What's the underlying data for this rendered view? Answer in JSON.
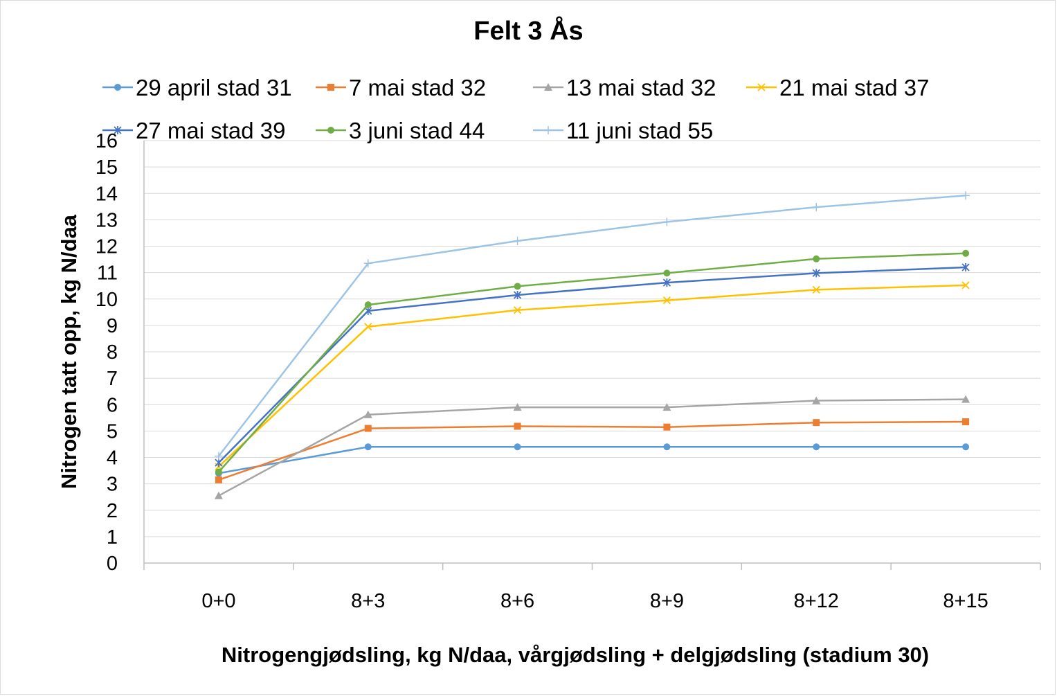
{
  "chart_data": {
    "type": "line",
    "title": "Felt 3 Ås",
    "xlabel": "Nitrogengjødsling, kg N/daa, vårgjødsling + delgjødsling (stadium 30)",
    "ylabel": "Nitrogen tatt opp, kg N/daa",
    "categories": [
      "0+0",
      "8+3",
      "8+6",
      "8+9",
      "8+12",
      "8+15"
    ],
    "ylim": [
      0,
      16
    ],
    "yticks": [
      0,
      1,
      2,
      3,
      4,
      5,
      6,
      7,
      8,
      9,
      10,
      11,
      12,
      13,
      14,
      15,
      16
    ],
    "grid": true,
    "legend_position": "top",
    "series": [
      {
        "name": "29 april stad 31",
        "color": "#5b9bd5",
        "marker": "circle",
        "values": [
          3.4,
          4.4,
          4.4,
          4.4,
          4.4,
          4.4
        ]
      },
      {
        "name": "7 mai stad 32",
        "color": "#ed7d31",
        "marker": "square",
        "values": [
          3.15,
          5.1,
          5.18,
          5.15,
          5.32,
          5.35
        ]
      },
      {
        "name": "13 mai stad 32",
        "color": "#a5a5a5",
        "marker": "triangle",
        "values": [
          2.55,
          5.62,
          5.9,
          5.9,
          6.15,
          6.2
        ]
      },
      {
        "name": "21 mai stad 37",
        "color": "#ffc000",
        "marker": "x",
        "values": [
          3.65,
          8.95,
          9.58,
          9.95,
          10.35,
          10.52
        ]
      },
      {
        "name": "27 mai stad 39",
        "color": "#4472c4",
        "marker": "star",
        "values": [
          3.8,
          9.55,
          10.15,
          10.62,
          10.98,
          11.2
        ]
      },
      {
        "name": "3 juni stad 44",
        "color": "#70ad47",
        "marker": "circle",
        "values": [
          3.45,
          9.78,
          10.48,
          10.98,
          11.52,
          11.73
        ]
      },
      {
        "name": "11 juni stad 55",
        "color": "#9dc3e6",
        "marker": "plus",
        "values": [
          4.05,
          11.35,
          12.2,
          12.92,
          13.48,
          13.92
        ]
      }
    ]
  }
}
